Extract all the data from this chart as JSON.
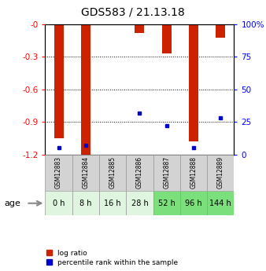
{
  "title": "GDS583 / 21.13.18",
  "samples": [
    "GSM12883",
    "GSM12884",
    "GSM12885",
    "GSM12886",
    "GSM12887",
    "GSM12888",
    "GSM12889"
  ],
  "ages": [
    "0 h",
    "8 h",
    "16 h",
    "28 h",
    "52 h",
    "96 h",
    "144 h"
  ],
  "log_ratios": [
    -1.05,
    -1.22,
    0.0,
    -0.08,
    -0.27,
    -1.08,
    -0.12
  ],
  "percentile_ranks": [
    5,
    7,
    0,
    32,
    22,
    5,
    28
  ],
  "ylim": [
    -1.2,
    0.0
  ],
  "ylim_right": [
    0,
    100
  ],
  "yticks_left": [
    -1.2,
    -0.9,
    -0.6,
    -0.3,
    0.0
  ],
  "ytick_labels_left": [
    "-1.2",
    "-0.9",
    "-0.6",
    "-0.3",
    "-0"
  ],
  "yticks_right": [
    0,
    25,
    50,
    75,
    100
  ],
  "ytick_labels_right": [
    "0",
    "25",
    "50",
    "75",
    "100%"
  ],
  "bar_color": "#cc2200",
  "dot_color": "#0000cc",
  "age_bg_light": "#dff5df",
  "age_bg_dark": "#7be07b",
  "age_light_indices": [
    0,
    1,
    2,
    3
  ],
  "age_dark_indices": [
    4,
    5,
    6
  ],
  "sample_bg_color": "#d3d3d3",
  "bar_width": 0.35,
  "figsize": [
    3.38,
    3.45
  ],
  "dpi": 100
}
